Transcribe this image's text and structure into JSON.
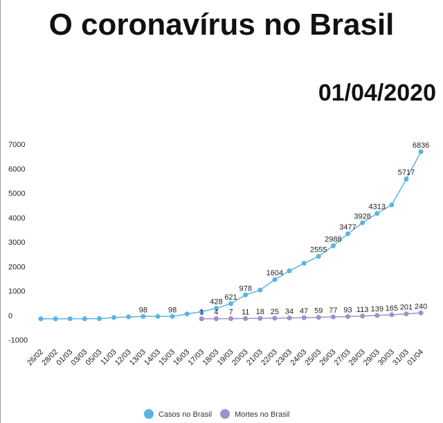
{
  "chart_data": {
    "type": "line",
    "title": "O coronavírus no Brasil",
    "subtitle": "01/04/2020",
    "categories": [
      "26/02",
      "28/02",
      "01/03",
      "03/03",
      "05/03",
      "11/03",
      "12/03",
      "13/03",
      "14/03",
      "15/03",
      "16/03",
      "17/03",
      "18/03",
      "19/03",
      "20/03",
      "21/03",
      "22/03",
      "23/03",
      "24/03",
      "25/03",
      "26/03",
      "27/03",
      "28/03",
      "29/03",
      "30/03",
      "31/03",
      "01/04"
    ],
    "series": [
      {
        "name": "Casos no Brasil",
        "color": "#5ab4e5",
        "values": [
          1,
          1,
          2,
          2,
          8,
          52,
          77,
          98,
          98,
          98,
          200,
          291,
          428,
          621,
          978,
          1178,
          1604,
          1960,
          2271,
          2555,
          2988,
          3477,
          3928,
          4313,
          4661,
          5717,
          6836
        ],
        "value_labels": [
          null,
          null,
          null,
          null,
          null,
          null,
          null,
          "98",
          null,
          "98",
          null,
          null,
          "428",
          "621",
          "978",
          null,
          "1604",
          null,
          null,
          "2555",
          "2988",
          "3477",
          "3928",
          "4313",
          null,
          "5717",
          "6836"
        ]
      },
      {
        "name": "Mortes no Brasil",
        "color": "#a48ec9",
        "values": [
          null,
          null,
          null,
          null,
          null,
          null,
          null,
          null,
          null,
          null,
          null,
          1,
          4,
          7,
          11,
          18,
          25,
          34,
          47,
          59,
          77,
          93,
          113,
          139,
          165,
          201,
          240
        ],
        "value_labels": [
          null,
          null,
          null,
          null,
          null,
          null,
          null,
          null,
          null,
          null,
          null,
          "1",
          "4",
          "7",
          "11",
          "18",
          "25",
          "34",
          "47",
          "59",
          "77",
          "93",
          "113",
          "139",
          "165",
          "201",
          "240"
        ]
      }
    ],
    "ylim": [
      -1000,
      7000
    ],
    "yticks": [
      -1000,
      0,
      1000,
      2000,
      3000,
      4000,
      5000,
      6000,
      7000
    ],
    "grid": false
  }
}
